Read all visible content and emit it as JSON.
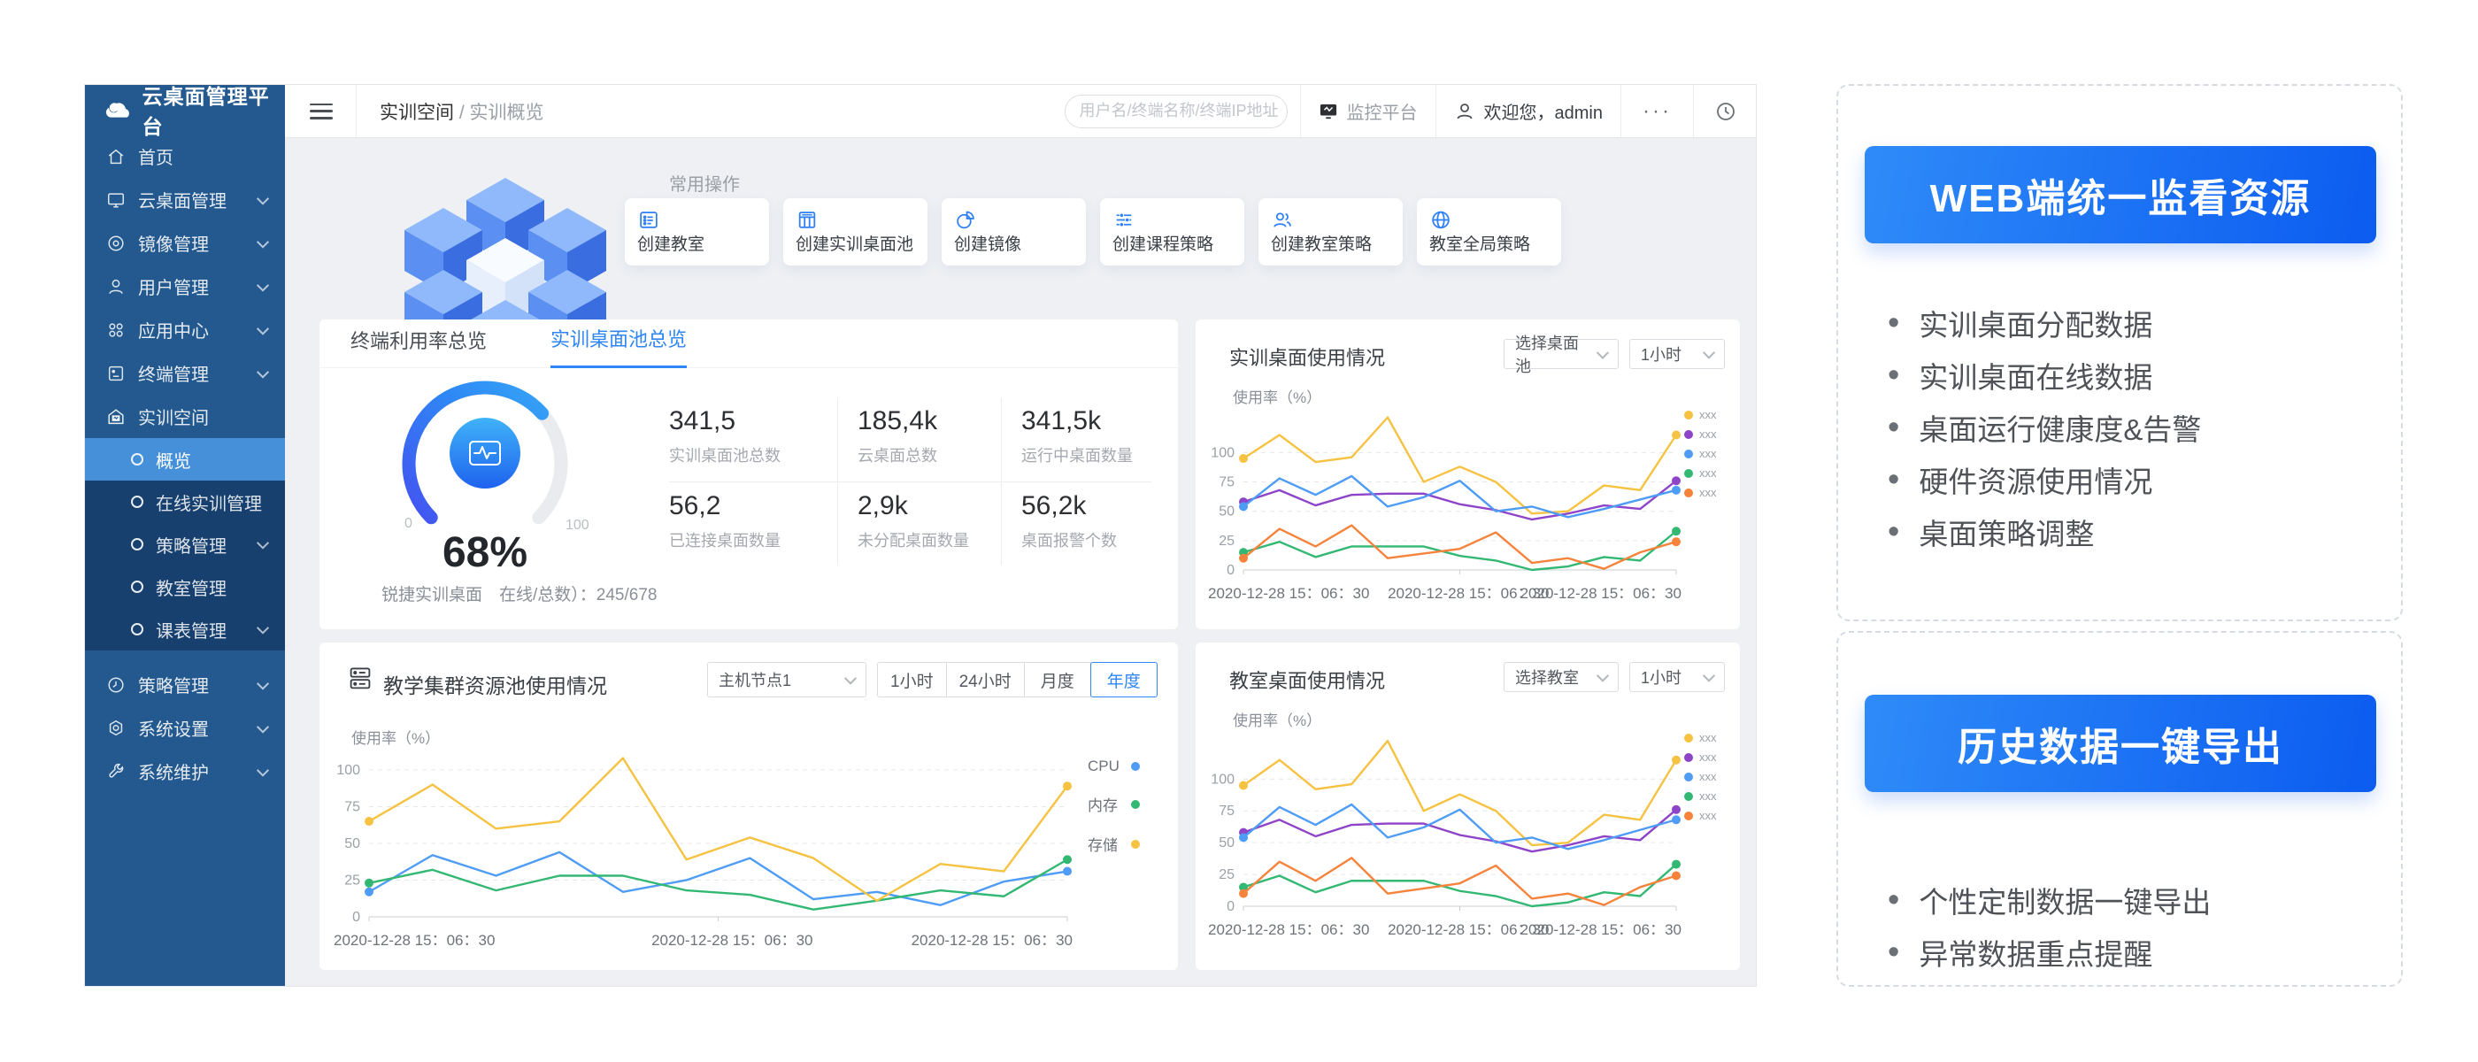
{
  "app": {
    "logo_text": "云桌面管理平台"
  },
  "sidebar": {
    "items": [
      {
        "label": "首页",
        "icon": "home-icon"
      },
      {
        "label": "云桌面管理",
        "icon": "monitor-icon",
        "chevron": true
      },
      {
        "label": "镜像管理",
        "icon": "disc-icon",
        "chevron": true
      },
      {
        "label": "用户管理",
        "icon": "user-icon",
        "chevron": true
      },
      {
        "label": "应用中心",
        "icon": "apps-icon",
        "chevron": true
      },
      {
        "label": "终端管理",
        "icon": "terminal-icon",
        "chevron": true
      },
      {
        "label": "实训空间",
        "icon": "school-icon",
        "expanded": true
      }
    ],
    "training_submenu": [
      {
        "label": "概览",
        "active": true
      },
      {
        "label": "在线实训管理"
      },
      {
        "label": "策略管理",
        "chevron": true
      },
      {
        "label": "教室管理"
      },
      {
        "label": "课表管理",
        "chevron": true
      }
    ],
    "bottom_items": [
      {
        "label": "策略管理",
        "icon": "clock-icon",
        "chevron": true
      },
      {
        "label": "系统设置",
        "icon": "gear-icon",
        "chevron": true
      },
      {
        "label": "系统维护",
        "icon": "wrench-icon",
        "chevron": true
      }
    ]
  },
  "header": {
    "breadcrumb_parent": "实训空间",
    "breadcrumb_sep": "/",
    "breadcrumb_current": "实训概览",
    "search_placeholder": "用户名/终端名称/终端IP地址",
    "monitor_label": "监控平台",
    "welcome_text": "欢迎您，admin",
    "more_label": "···"
  },
  "quick_actions": {
    "title": "常用操作",
    "items": [
      {
        "label": "创建教室",
        "icon": "classroom-icon"
      },
      {
        "label": "创建实训桌面池",
        "icon": "desktop-pool-icon"
      },
      {
        "label": "创建镜像",
        "icon": "image-icon"
      },
      {
        "label": "创建课程策略",
        "icon": "course-policy-icon"
      },
      {
        "label": "创建教室策略",
        "icon": "classroom-policy-icon"
      },
      {
        "label": "教室全局策略",
        "icon": "global-policy-icon"
      }
    ]
  },
  "overview": {
    "tabs": [
      {
        "label": "终端利用率总览"
      },
      {
        "label": "实训桌面池总览",
        "active": true
      }
    ],
    "gauge": {
      "display": "68%",
      "min_label": "0",
      "max_label": "100"
    },
    "stats": [
      {
        "value": "341,5",
        "label": "实训桌面池总数"
      },
      {
        "value": "185,4k",
        "label": "云桌面总数"
      },
      {
        "value": "341,5k",
        "label": "运行中桌面数量"
      },
      {
        "value": "56,2",
        "label": "已连接桌面数量"
      },
      {
        "value": "2,9k",
        "label": "未分配桌面数量"
      },
      {
        "value": "56,2k",
        "label": "桌面报警个数"
      }
    ],
    "footnote": "锐捷实训桌面　在线/总数）：245/678"
  },
  "controls": {
    "pool_panel": {
      "select_pool": "选择桌面池",
      "select_time": "1小时"
    },
    "cluster_panel": {
      "select_node": "主机节点1",
      "buttons": [
        {
          "label": "1小时"
        },
        {
          "label": "24小时"
        },
        {
          "label": "月度"
        },
        {
          "label": "年度",
          "active": true
        }
      ]
    },
    "classroom_panel": {
      "select_class": "选择教室",
      "select_time": "1小时"
    }
  },
  "features": [
    {
      "title": "WEB端统一监看资源",
      "bullets": [
        "实训桌面分配数据",
        "实训桌面在线数据",
        "桌面运行健康度&告警",
        "硬件资源使用情况",
        "桌面策略调整"
      ]
    },
    {
      "title": "历史数据一键导出",
      "bullets": [
        "个性定制数据一键导出",
        "异常数据重点提醒"
      ]
    }
  ],
  "colors": {
    "accent": "#2f86f5",
    "sidebar": "#24598f",
    "sidebar_submenu": "#17406e",
    "sidebar_active": "#4590d8",
    "series_yellow": "#f5c242",
    "series_purple": "#8e44c8",
    "series_blue": "#4e9cf5",
    "series_green": "#33b873",
    "series_orange": "#f5833c"
  },
  "chart_data": [
    {
      "type": "gauge",
      "panel": "实训桌面池总览",
      "value": 68,
      "min": 0,
      "max": 100,
      "unit": "%",
      "note": "锐捷实训桌面 在线/总数）：245/678"
    },
    {
      "type": "line",
      "title": "实训桌面使用情况",
      "ylabel": "使用率（%）",
      "yticks": [
        0,
        25,
        50,
        75,
        100
      ],
      "ylim": [
        0,
        135
      ],
      "grid": true,
      "legend_position": "right-top",
      "legend_dot": "left",
      "x_labels": [
        "2020-12-28 15：06：30",
        "2020-12-28 15：06：30",
        "2020-12-28 15：06：30"
      ],
      "series": [
        {
          "name": "xxx",
          "color": "#f5c242",
          "values": [
            95,
            115,
            92,
            96,
            130,
            75,
            88,
            75,
            48,
            50,
            72,
            68,
            115
          ]
        },
        {
          "name": "xxx",
          "color": "#8e44c8",
          "values": [
            58,
            68,
            55,
            64,
            65,
            65,
            56,
            51,
            43,
            48,
            55,
            52,
            76
          ]
        },
        {
          "name": "xxx",
          "color": "#4e9cf5",
          "values": [
            54,
            78,
            64,
            80,
            54,
            62,
            76,
            50,
            54,
            45,
            52,
            60,
            68
          ]
        },
        {
          "name": "xxx",
          "color": "#33b873",
          "values": [
            15,
            24,
            11,
            20,
            20,
            20,
            12,
            8,
            0,
            3,
            11,
            8,
            33
          ]
        },
        {
          "name": "xxx",
          "color": "#f5833c",
          "values": [
            10,
            35,
            20,
            38,
            10,
            14,
            18,
            32,
            6,
            10,
            1,
            15,
            24
          ]
        }
      ]
    },
    {
      "type": "line",
      "title": "教学集群资源池使用情况",
      "ylabel": "使用率（%）",
      "yticks": [
        0,
        25,
        50,
        75,
        100
      ],
      "ylim": [
        0,
        112
      ],
      "grid": true,
      "legend_position": "right",
      "legend_dot": "right",
      "x_labels": [
        "2020-12-28 15：06：30",
        "2020-12-28 15：06：30",
        "2020-12-28 15：06：30"
      ],
      "series": [
        {
          "name": "CPU",
          "color": "#4e9cf5",
          "values": [
            17,
            42,
            28,
            44,
            17,
            25,
            40,
            12,
            17,
            8,
            24,
            31
          ]
        },
        {
          "name": "内存",
          "color": "#33b873",
          "values": [
            23,
            32,
            18,
            28,
            28,
            18,
            15,
            5,
            11,
            18,
            14,
            39
          ]
        },
        {
          "name": "存储",
          "color": "#f5c242",
          "values": [
            65,
            90,
            60,
            65,
            108,
            39,
            54,
            40,
            11,
            36,
            31,
            89
          ]
        }
      ]
    },
    {
      "type": "line",
      "title": "教室桌面使用情况",
      "ylabel": "使用率（%）",
      "yticks": [
        0,
        25,
        50,
        75,
        100
      ],
      "ylim": [
        0,
        135
      ],
      "grid": true,
      "legend_position": "right-top",
      "legend_dot": "left",
      "x_labels": [
        "2020-12-28 15：06：30",
        "2020-12-28 15：06：30",
        "2020-12-28 15：06：30"
      ],
      "series": [
        {
          "name": "xxx",
          "color": "#f5c242",
          "values": [
            95,
            115,
            92,
            96,
            130,
            75,
            88,
            75,
            48,
            50,
            72,
            68,
            115
          ]
        },
        {
          "name": "xxx",
          "color": "#8e44c8",
          "values": [
            58,
            68,
            55,
            64,
            65,
            65,
            56,
            51,
            43,
            48,
            55,
            52,
            76
          ]
        },
        {
          "name": "xxx",
          "color": "#4e9cf5",
          "values": [
            54,
            78,
            64,
            80,
            54,
            62,
            76,
            50,
            54,
            45,
            52,
            60,
            68
          ]
        },
        {
          "name": "xxx",
          "color": "#33b873",
          "values": [
            15,
            24,
            11,
            20,
            20,
            20,
            12,
            8,
            0,
            3,
            11,
            8,
            33
          ]
        },
        {
          "name": "xxx",
          "color": "#f5833c",
          "values": [
            10,
            35,
            20,
            38,
            10,
            14,
            18,
            32,
            6,
            10,
            1,
            15,
            24
          ]
        }
      ]
    }
  ]
}
